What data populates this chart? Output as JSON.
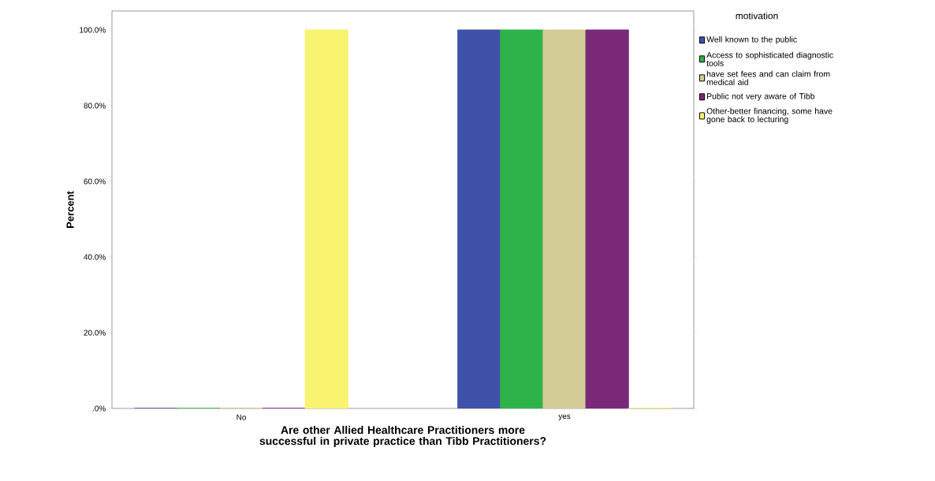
{
  "chart_data": {
    "type": "bar",
    "xlabel": "Are other Allied Healthcare Practitioners more successful in private practice than Tibb Practitioners?",
    "ylabel": "Percent",
    "legend_title": "motivation",
    "categories": [
      "No",
      "yes"
    ],
    "series": [
      {
        "name": "Well known to the public",
        "color": "#3f51a8",
        "values": [
          0,
          100
        ]
      },
      {
        "name": "Access to sophisticated diagnostic tools",
        "color": "#2db34a",
        "values": [
          0,
          100
        ]
      },
      {
        "name": "have set fees and can claim from medical aid",
        "color": "#d3cc97",
        "values": [
          0,
          100
        ]
      },
      {
        "name": "Public not very aware of Tibb",
        "color": "#7a2878",
        "values": [
          0,
          100
        ]
      },
      {
        "name": "Other-better financing, some have gone back to lecturing",
        "color": "#f8f46f",
        "values": [
          100,
          0
        ]
      }
    ],
    "ylim": [
      0,
      105
    ],
    "yticks": [
      {
        "value": 0,
        "label": ".0%"
      },
      {
        "value": 20,
        "label": "20.0%"
      },
      {
        "value": 40,
        "label": "40.0%"
      },
      {
        "value": 60,
        "label": "60.0%"
      },
      {
        "value": 80,
        "label": "80.0%"
      },
      {
        "value": 100,
        "label": "100.0%"
      }
    ],
    "legend": "top right",
    "grid": false
  }
}
